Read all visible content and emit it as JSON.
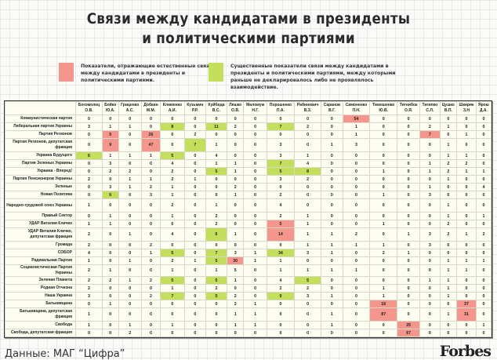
{
  "title_line1": "Связи между кандидатами в президенты",
  "title_line2": "и политическими партиями",
  "legend": [
    {
      "color": "#f4968c",
      "text": "Показатели, отражающие естественные связи между кандидатами в президенты и политическими партиями."
    },
    {
      "color": "#c3df5c",
      "text": "Существенные показатели связи между кандидатами в президенты и политическими партиями, между которыми раньше не декларировалось либо не проявлялось взаимодействие."
    }
  ],
  "footer": "Данные: МАГ “Цифра”",
  "logo": "Forbes",
  "chart_data": {
    "type": "table",
    "columns": [
      {
        "surname": "Богомолец",
        "initials": "О.В."
      },
      {
        "surname": "Бойко",
        "initials": "Ю.А."
      },
      {
        "surname": "Гриценко",
        "initials": "А.С."
      },
      {
        "surname": "Добкин",
        "initials": "М.М."
      },
      {
        "surname": "Клименко",
        "initials": "А.И."
      },
      {
        "surname": "Кузьмин",
        "initials": "Р.Р."
      },
      {
        "surname": "Куйбида",
        "initials": "В.С."
      },
      {
        "surname": "Ляшко",
        "initials": "О.В."
      },
      {
        "surname": "Маломуж",
        "initials": "Н.Г."
      },
      {
        "surname": "Порошенко",
        "initials": "П.А."
      },
      {
        "surname": "Рабинович",
        "initials": "В.З."
      },
      {
        "surname": "Саранов",
        "initials": "В.Г."
      },
      {
        "surname": "Симоненко",
        "initials": "П.Н."
      },
      {
        "surname": "Тимошенко",
        "initials": "Ю.В."
      },
      {
        "surname": "Тягнибок",
        "initials": "О.Я."
      },
      {
        "surname": "Тигипко",
        "initials": "С.Л."
      },
      {
        "surname": "Цушко",
        "initials": "В.П."
      },
      {
        "surname": "Шкиряк",
        "initials": "З.Н"
      },
      {
        "surname": "Ярош",
        "initials": "Д.А."
      }
    ],
    "rows": [
      {
        "party": "Коммунистическая партия",
        "values": [
          0,
          0,
          0,
          0,
          0,
          0,
          0,
          0,
          0,
          0,
          0,
          0,
          54,
          0,
          0,
          0,
          0,
          0,
          0
        ],
        "red": [
          12
        ],
        "green": []
      },
      {
        "party": "Либеральная партия Украины",
        "values": [
          3,
          1,
          1,
          0,
          8,
          0,
          11,
          2,
          0,
          7,
          2,
          0,
          1,
          0,
          0,
          2,
          1,
          0,
          0
        ],
        "red": [],
        "green": [
          4,
          6,
          9
        ]
      },
      {
        "party": "Партия Регионов",
        "values": [
          0,
          5,
          0,
          26,
          0,
          2,
          0,
          0,
          0,
          0,
          0,
          0,
          1,
          0,
          0,
          7,
          0,
          1,
          0
        ],
        "red": [
          1,
          3,
          15
        ],
        "green": []
      },
      {
        "party": "Партия Регионов, депутатская фракция",
        "values": [
          0,
          9,
          0,
          47,
          0,
          7,
          1,
          0,
          0,
          3,
          0,
          1,
          3,
          0,
          0,
          0,
          1,
          0,
          0
        ],
        "red": [
          1,
          3
        ],
        "green": [
          5
        ]
      },
      {
        "party": "Украина Будущего",
        "values": [
          6,
          1,
          1,
          1,
          5,
          0,
          4,
          0,
          0,
          3,
          1,
          0,
          0,
          0,
          0,
          0,
          1,
          1,
          0
        ],
        "red": [],
        "green": [
          0,
          4
        ]
      },
      {
        "party": "Партия Зеленых Украины",
        "values": [
          0,
          3,
          0,
          0,
          4,
          0,
          1,
          1,
          0,
          7,
          4,
          0,
          0,
          0,
          0,
          1,
          2,
          2,
          0
        ],
        "red": [],
        "green": [
          9
        ]
      },
      {
        "party": "Украина - Вперед!",
        "values": [
          0,
          2,
          2,
          0,
          2,
          0,
          5,
          1,
          0,
          5,
          8,
          0,
          0,
          1,
          0,
          1,
          2,
          1,
          1
        ],
        "red": [],
        "green": [
          6,
          9,
          10
        ]
      },
      {
        "party": "Партия Пенсионеров Украины",
        "values": [
          2,
          0,
          1,
          1,
          2,
          1,
          0,
          0,
          0,
          3,
          2,
          0,
          0,
          0,
          0,
          0,
          1,
          0,
          0
        ],
        "red": [],
        "green": []
      },
      {
        "party": "Зеленые",
        "values": [
          0,
          3,
          1,
          2,
          1,
          0,
          0,
          2,
          0,
          0,
          0,
          0,
          0,
          0,
          0,
          1,
          0,
          0,
          4
        ],
        "red": [],
        "green": []
      },
      {
        "party": "Новая Политика",
        "values": [
          0,
          6,
          0,
          3,
          1,
          0,
          0,
          1,
          0,
          2,
          0,
          0,
          0,
          1,
          0,
          3,
          0,
          0,
          0
        ],
        "red": [],
        "green": [
          1
        ]
      },
      {
        "party": "Народно-трудовой союз Украины",
        "values": [
          1,
          0,
          0,
          0,
          2,
          0,
          1,
          0,
          0,
          4,
          0,
          0,
          0,
          0,
          0,
          0,
          1,
          0,
          0
        ],
        "red": [],
        "green": []
      },
      {
        "party": "Правый Сектор",
        "values": [
          0,
          1,
          0,
          0,
          1,
          0,
          2,
          0,
          0,
          2,
          1,
          0,
          0,
          0,
          0,
          0,
          1,
          0,
          1
        ],
        "red": [],
        "green": []
      },
      {
        "party": "УДАР Виталия Кличко",
        "values": [
          1,
          1,
          0,
          0,
          0,
          0,
          2,
          0,
          0,
          5,
          1,
          0,
          0,
          1,
          0,
          0,
          2,
          0,
          0
        ],
        "red": [
          9
        ],
        "green": []
      },
      {
        "party": "УДАР Виталия Кличко, депутатская фракция",
        "values": [
          2,
          0,
          1,
          0,
          4,
          0,
          6,
          1,
          0,
          14,
          1,
          1,
          2,
          0,
          1,
          3,
          2,
          1,
          2
        ],
        "red": [
          9
        ],
        "green": [
          6
        ]
      },
      {
        "party": "Громада",
        "values": [
          2,
          0,
          0,
          2,
          0,
          0,
          0,
          0,
          0,
          0,
          1,
          1,
          1,
          1,
          0,
          3,
          0,
          0,
          0
        ],
        "red": [],
        "green": []
      },
      {
        "party": "СОБОР",
        "values": [
          4,
          0,
          0,
          1,
          5,
          0,
          7,
          3,
          1,
          34,
          3,
          1,
          0,
          2,
          1,
          0,
          0,
          0,
          0
        ],
        "red": [],
        "green": [
          4,
          6,
          9
        ]
      },
      {
        "party": "Радикальная Партия",
        "values": [
          1,
          0,
          1,
          0,
          2,
          1,
          5,
          30,
          1,
          1,
          0,
          0,
          0,
          0,
          0,
          0,
          1,
          1,
          1
        ],
        "red": [
          7
        ],
        "green": [
          6
        ]
      },
      {
        "party": "Социалистическая Партия Украины",
        "values": [
          2,
          1,
          0,
          0,
          1,
          0,
          1,
          5,
          0,
          1,
          1,
          1,
          1,
          0,
          0,
          0,
          1,
          1,
          0
        ],
        "red": [],
        "green": []
      },
      {
        "party": "Зеленая Планета",
        "values": [
          2,
          2,
          1,
          2,
          5,
          0,
          5,
          1,
          0,
          4,
          5,
          0,
          0,
          0,
          0,
          1,
          1,
          0,
          0
        ],
        "red": [],
        "green": [
          4,
          6,
          10
        ]
      },
      {
        "party": "Родная Отчизна",
        "values": [
          2,
          0,
          0,
          0,
          1,
          0,
          2,
          0,
          0,
          2,
          2,
          0,
          0,
          1,
          0,
          0,
          1,
          0,
          0
        ],
        "red": [],
        "green": []
      },
      {
        "party": "Наша Украина",
        "values": [
          3,
          0,
          0,
          2,
          7,
          0,
          5,
          2,
          0,
          9,
          3,
          1,
          0,
          1,
          0,
          0,
          1,
          0,
          0
        ],
        "red": [],
        "green": [
          4,
          6,
          9
        ]
      },
      {
        "party": "Батькивщина",
        "values": [
          0,
          1,
          0,
          0,
          0,
          0,
          0,
          2,
          1,
          0,
          0,
          0,
          0,
          16,
          0,
          0,
          0,
          37,
          0
        ],
        "red": [
          13,
          17
        ],
        "green": []
      },
      {
        "party": "Батькивщина, депутатская фракция",
        "values": [
          1,
          0,
          0,
          0,
          0,
          0,
          0,
          1,
          1,
          0,
          0,
          1,
          0,
          87,
          0,
          0,
          1,
          31,
          0
        ],
        "red": [
          13,
          17
        ],
        "green": []
      },
      {
        "party": "Свобода",
        "values": [
          1,
          0,
          1,
          0,
          1,
          0,
          0,
          1,
          1,
          0,
          0,
          1,
          0,
          0,
          25,
          0,
          0,
          0,
          1
        ],
        "red": [
          14
        ],
        "green": []
      },
      {
        "party": "Свобода, депутатская фракция",
        "values": [
          0,
          0,
          2,
          0,
          0,
          0,
          0,
          0,
          0,
          0,
          0,
          0,
          0,
          0,
          67,
          0,
          0,
          0,
          0
        ],
        "red": [
          14
        ],
        "green": []
      }
    ]
  }
}
